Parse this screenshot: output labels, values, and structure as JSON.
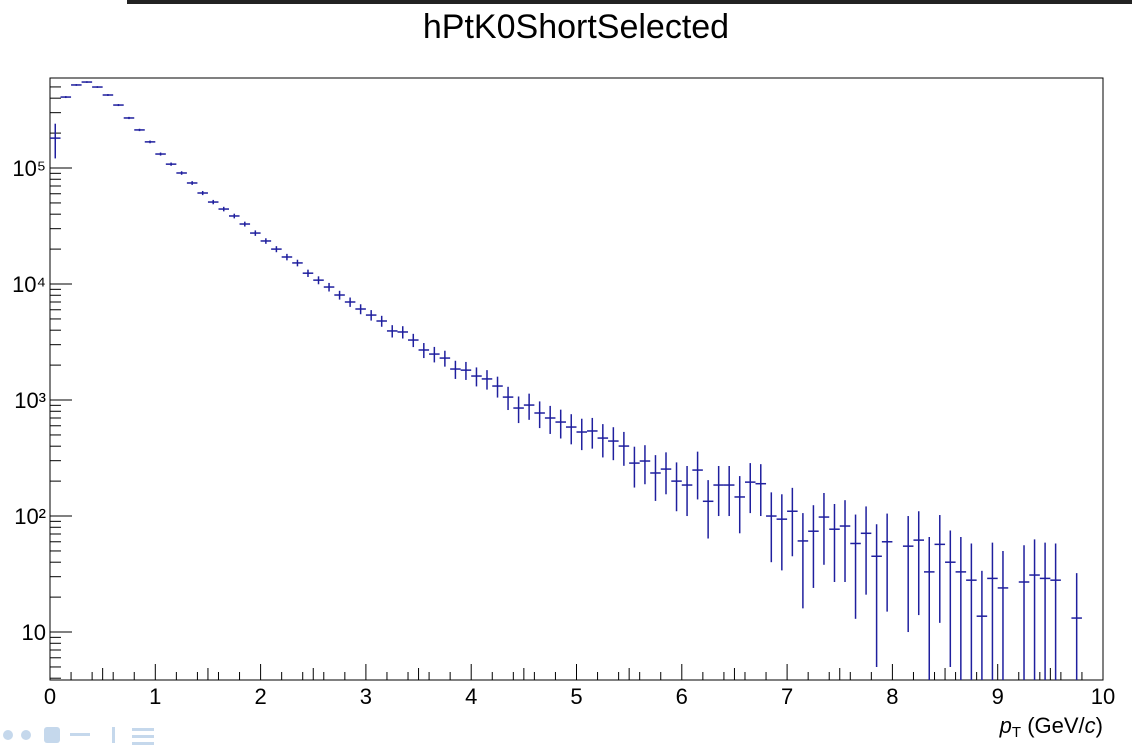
{
  "chart_data": {
    "type": "histogram",
    "title": "hPtK0ShortSelected",
    "xlabel": [
      "p",
      "T",
      " (GeV/",
      "c",
      ")"
    ],
    "color": "#1f1f9e",
    "log_y": true,
    "xlim": [
      0,
      10
    ],
    "xticks": [
      0,
      1,
      2,
      3,
      4,
      5,
      6,
      7,
      8,
      9,
      10
    ],
    "ylim": [
      3.86,
      597000
    ],
    "yticks": [
      10,
      {
        "value": 100,
        "label": "10²"
      },
      {
        "value": 1000,
        "label": "10³"
      },
      {
        "value": 10000,
        "label": "10⁴"
      },
      {
        "value": 100000,
        "label": "10⁵"
      }
    ],
    "bins": [
      0,
      0.1,
      0.2,
      0.3,
      0.4,
      0.5,
      0.6,
      0.7,
      0.8,
      0.9,
      1,
      1.1,
      1.2,
      1.3,
      1.4,
      1.5,
      1.6,
      1.7,
      1.8,
      1.9,
      2,
      2.1,
      2.2,
      2.3,
      2.4,
      2.5,
      2.6,
      2.7,
      2.8,
      2.9,
      3,
      3.1,
      3.2,
      3.3,
      3.4,
      3.5,
      3.6,
      3.7,
      3.8,
      3.9,
      4,
      4.1,
      4.2,
      4.3,
      4.4,
      4.5,
      4.6,
      4.7,
      4.8,
      4.9,
      5,
      5.1,
      5.2,
      5.3,
      5.4,
      5.5,
      5.6,
      5.7,
      5.8,
      5.9,
      6,
      6.1,
      6.2,
      6.3,
      6.4,
      6.5,
      6.6,
      6.7,
      6.8,
      6.9,
      7,
      7.1,
      7.2,
      7.3,
      7.4,
      7.5,
      7.6,
      7.7,
      7.8,
      7.9,
      8,
      8.1,
      8.2,
      8.3,
      8.4,
      8.5,
      8.6,
      8.7,
      8.8,
      8.9,
      9,
      9.1,
      9.2,
      9.3,
      9.4,
      9.5,
      9.6,
      9.7,
      9.8,
      9.9,
      10
    ],
    "values": [
      181000,
      409000,
      520000,
      551000,
      499000,
      426000,
      349000,
      270000,
      213000,
      168000,
      132000,
      108000,
      90600,
      74300,
      60900,
      50900,
      44300,
      38600,
      32900,
      27500,
      23500,
      20000,
      17100,
      15200,
      12400,
      10800,
      9420,
      8040,
      7000,
      6090,
      5400,
      4800,
      3940,
      3860,
      3290,
      2700,
      2490,
      2300,
      1850,
      1810,
      1610,
      1520,
      1320,
      1060,
      853,
      905,
      773,
      700,
      646,
      585,
      530,
      541,
      470,
      443,
      401,
      286,
      298,
      235,
      254,
      200,
      185,
      249,
      134,
      185,
      185,
      146,
      196,
      190,
      100,
      94,
      110,
      61,
      74,
      98,
      77,
      82,
      58,
      71,
      45,
      60,
      null,
      55,
      62,
      33,
      57,
      40,
      33,
      28,
      13.7,
      29,
      24,
      null,
      27,
      31,
      29,
      28,
      null,
      13.2,
      null,
      null
    ],
    "errors": [
      60000,
      8000,
      9000,
      9000,
      8500,
      8000,
      7000,
      6000,
      5000,
      4500,
      4000,
      3500,
      3200,
      2800,
      2500,
      2200,
      2000,
      1800,
      1600,
      1500,
      1300,
      1200,
      1100,
      1000,
      900,
      850,
      800,
      700,
      650,
      600,
      560,
      520,
      480,
      470,
      430,
      400,
      380,
      360,
      330,
      320,
      300,
      290,
      270,
      240,
      220,
      230,
      200,
      190,
      180,
      170,
      160,
      160,
      150,
      140,
      130,
      110,
      110,
      100,
      100,
      90,
      85,
      110,
      70,
      85,
      85,
      75,
      90,
      90,
      60,
      60,
      65,
      45,
      50,
      60,
      50,
      55,
      45,
      50,
      40,
      45,
      null,
      45,
      48,
      33,
      45,
      35,
      33,
      30,
      20,
      30,
      26,
      null,
      29,
      32,
      30,
      30,
      null,
      19,
      null,
      null
    ]
  }
}
